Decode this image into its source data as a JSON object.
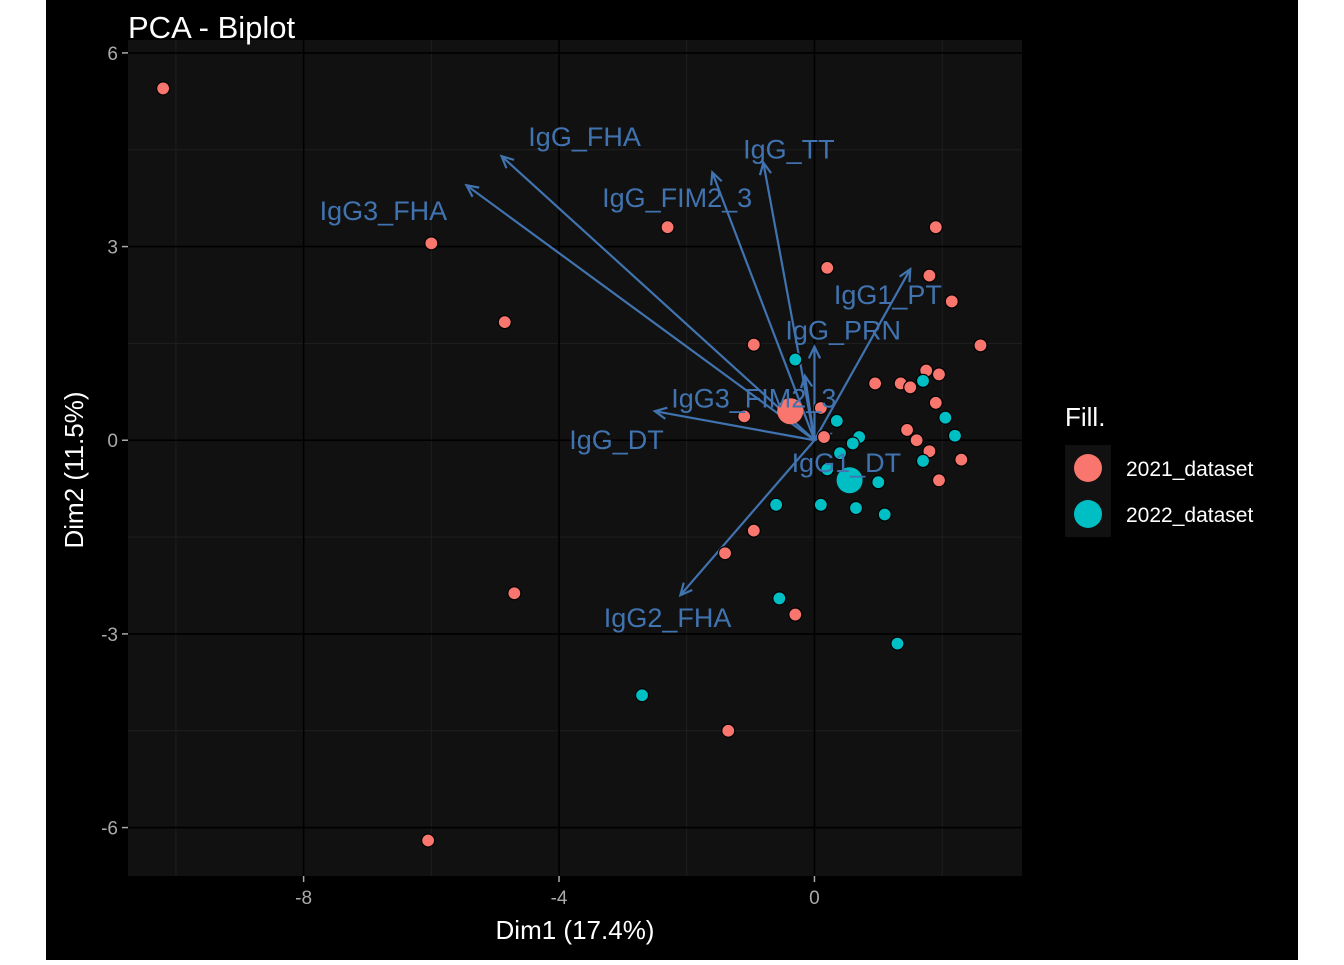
{
  "chart_data": {
    "type": "scatter",
    "title": "PCA - Biplot",
    "xlabel": "Dim1 (17.4%)",
    "ylabel": "Dim2 (11.5%)",
    "xlim": [
      -10.75,
      3.25
    ],
    "ylim": [
      -6.75,
      6.2
    ],
    "x_ticks": [
      -8,
      -4,
      0
    ],
    "y_ticks": [
      -6,
      -3,
      0,
      3,
      6
    ],
    "x_tick_labels": [
      "-8",
      "-4",
      "0"
    ],
    "y_tick_labels": [
      "-6",
      "-3",
      "0",
      "3",
      "6"
    ],
    "grid": true,
    "legend": {
      "title": "Fill.",
      "position": "right"
    },
    "series": [
      {
        "name": "2021_dataset",
        "color": "#F8766D",
        "points": [
          [
            -10.2,
            5.45
          ],
          [
            -6.0,
            3.05
          ],
          [
            -4.85,
            1.83
          ],
          [
            -2.3,
            3.3
          ],
          [
            -0.95,
            1.48
          ],
          [
            -1.1,
            0.37
          ],
          [
            -0.3,
            0.45
          ],
          [
            0.1,
            0.5
          ],
          [
            0.15,
            0.05
          ],
          [
            0.2,
            2.67
          ],
          [
            0.95,
            0.88
          ],
          [
            1.35,
            0.88
          ],
          [
            1.5,
            0.82
          ],
          [
            1.75,
            1.08
          ],
          [
            1.95,
            1.02
          ],
          [
            1.8,
            2.55
          ],
          [
            1.9,
            3.3
          ],
          [
            2.15,
            2.15
          ],
          [
            2.6,
            1.47
          ],
          [
            1.9,
            0.58
          ],
          [
            1.45,
            0.16
          ],
          [
            1.6,
            0.0
          ],
          [
            1.8,
            -0.17
          ],
          [
            2.3,
            -0.3
          ],
          [
            1.95,
            -0.62
          ],
          [
            -1.4,
            -1.75
          ],
          [
            -0.95,
            -1.4
          ],
          [
            -0.3,
            -2.7
          ],
          [
            -4.7,
            -2.37
          ],
          [
            -1.35,
            -4.5
          ],
          [
            -6.05,
            -6.2
          ]
        ],
        "centroid": [
          -0.38,
          0.45
        ]
      },
      {
        "name": "2022_dataset",
        "color": "#00BFC4",
        "points": [
          [
            -0.3,
            1.25
          ],
          [
            0.35,
            0.3
          ],
          [
            0.7,
            0.05
          ],
          [
            0.4,
            -0.2
          ],
          [
            1.0,
            -0.65
          ],
          [
            1.1,
            -1.15
          ],
          [
            0.65,
            -1.05
          ],
          [
            0.1,
            -1.0
          ],
          [
            -0.6,
            -1.0
          ],
          [
            -0.55,
            -2.45
          ],
          [
            -2.7,
            -3.95
          ],
          [
            1.3,
            -3.15
          ],
          [
            1.7,
            0.92
          ],
          [
            2.05,
            0.35
          ],
          [
            2.2,
            0.07
          ],
          [
            1.7,
            -0.32
          ],
          [
            0.6,
            -0.05
          ],
          [
            0.2,
            -0.45
          ]
        ],
        "centroid": [
          0.55,
          -0.62
        ]
      }
    ],
    "variables": [
      {
        "name": "IgG_FHA",
        "x": -4.9,
        "y": 4.4,
        "label_x": -3.6,
        "label_y": 4.7
      },
      {
        "name": "IgG3_FHA",
        "x": -5.45,
        "y": 3.95,
        "label_x": -6.75,
        "label_y": 3.55
      },
      {
        "name": "IgG_FIM2_3",
        "x": -1.6,
        "y": 4.15,
        "label_x": -2.15,
        "label_y": 3.75
      },
      {
        "name": "IgG_TT",
        "x": -0.8,
        "y": 4.3,
        "label_x": -0.4,
        "label_y": 4.5
      },
      {
        "name": "IgG1_PT",
        "x": 1.5,
        "y": 2.65,
        "label_x": 1.15,
        "label_y": 2.25
      },
      {
        "name": "IgG_PRN",
        "x": 0.0,
        "y": 1.45,
        "label_x": 0.45,
        "label_y": 1.7
      },
      {
        "name": "IgG3_FIM2_3",
        "x": -0.15,
        "y": 1.0,
        "label_x": -0.95,
        "label_y": 0.65
      },
      {
        "name": "IgG_DT",
        "x": -2.5,
        "y": 0.45,
        "label_x": -3.1,
        "label_y": 0.0
      },
      {
        "name": "IgG1_DT",
        "x": 0.25,
        "y": 0.1,
        "label_x": 0.5,
        "label_y": -0.35
      },
      {
        "name": "IgG2_FHA",
        "x": -2.1,
        "y": -2.4,
        "label_x": -2.3,
        "label_y": -2.75
      }
    ],
    "arrow_color": "#4073AF"
  }
}
